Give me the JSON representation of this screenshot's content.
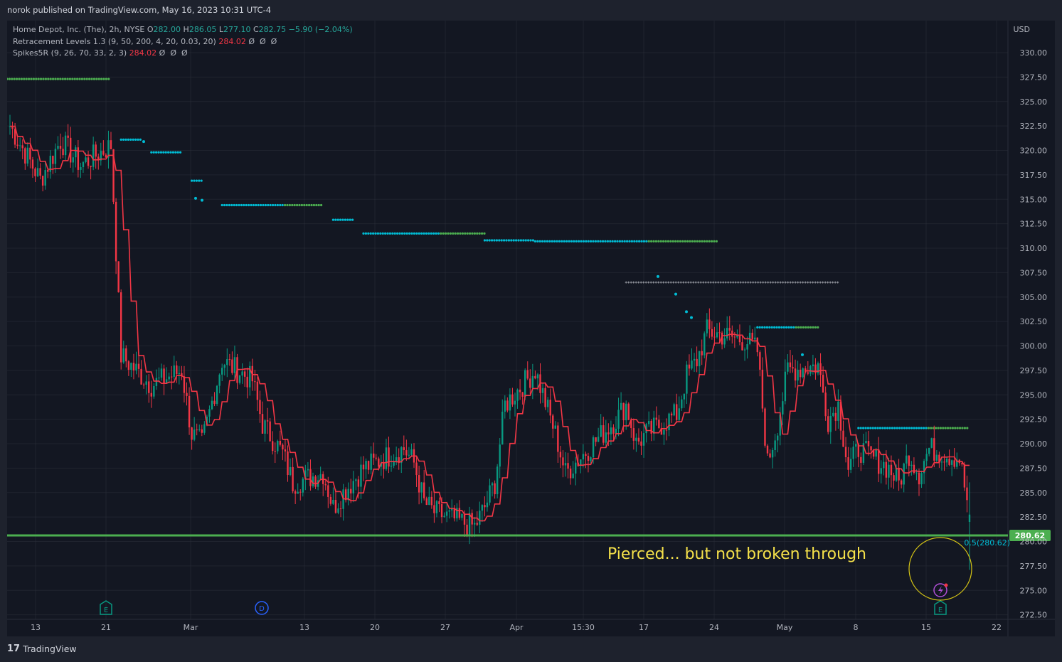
{
  "header": {
    "publish_text": "norok published on TradingView.com, May 16, 2023 10:31 UTC-4"
  },
  "legend": {
    "symbol": "Home Depot, Inc. (The), 2h, NYSE",
    "o_label": "O",
    "o_value": "282.00",
    "h_label": "H",
    "h_value": "286.05",
    "l_label": "L",
    "l_value": "277.10",
    "c_label": "C",
    "c_value": "282.75",
    "change": "−5.90 (−2.04%)",
    "ind1_name": "Retracement Levels 1.3 (9, 50, 200, 4, 20, 0.03, 20)",
    "ind1_value": "284.02",
    "ind1_extra": "Ø  Ø  Ø",
    "ind2_name": "Spikes5R (9, 26, 70, 33, 2, 3)",
    "ind2_value": "284.02",
    "ind2_extra": "Ø  Ø  Ø"
  },
  "footer": {
    "brand": "TradingView",
    "logo": "17"
  },
  "colors": {
    "background": "#131722",
    "frame": "#1e222d",
    "grid": "#2a2e39",
    "up": "#089981",
    "down": "#f23645",
    "ma_line": "#f23645",
    "support": "#4caf50",
    "cyan_dots": "#00bcd4",
    "green_dots": "#4caf50",
    "gray_crosses": "#9598a1",
    "annotation_text": "#f5e14a",
    "circle": "#d6c515",
    "retrace_label": "#00bcd4"
  },
  "chart_data": {
    "type": "candlestick",
    "title": "Home Depot, Inc. (The), 2h, NYSE",
    "currency": "USD",
    "ylim": [
      272.5,
      330.0
    ],
    "y_ticks": [
      "330.00",
      "327.50",
      "325.00",
      "322.50",
      "320.00",
      "317.50",
      "315.00",
      "312.50",
      "310.00",
      "307.50",
      "305.00",
      "302.50",
      "300.00",
      "297.50",
      "295.00",
      "292.50",
      "290.00",
      "287.50",
      "285.00",
      "282.50",
      "280.00",
      "277.50",
      "275.00",
      "272.50"
    ],
    "x_ticks": [
      "13",
      "21",
      "Mar",
      "13",
      "20",
      "27",
      "Apr",
      "15:30",
      "17",
      "24",
      "May",
      "8",
      "15",
      "22"
    ],
    "grid": true,
    "price_series_anchors": [
      {
        "t": "Feb 10",
        "v": 322.5
      },
      {
        "t": "Feb 13",
        "v": 317.0
      },
      {
        "t": "Feb 15",
        "v": 321.0
      },
      {
        "t": "Feb 17",
        "v": 318.5
      },
      {
        "t": "Feb 20",
        "v": 320.5
      },
      {
        "t": "Feb 21",
        "v": 299.0
      },
      {
        "t": "Feb 23",
        "v": 297.0
      },
      {
        "t": "Feb 24",
        "v": 296.0
      },
      {
        "t": "Feb 27",
        "v": 297.5
      },
      {
        "t": "Feb 28",
        "v": 291.0
      },
      {
        "t": "Mar 1",
        "v": 290.0
      },
      {
        "t": "Mar 3",
        "v": 298.5
      },
      {
        "t": "Mar 6",
        "v": 296.5
      },
      {
        "t": "Mar 7",
        "v": 292.0
      },
      {
        "t": "Mar 9",
        "v": 289.0
      },
      {
        "t": "Mar 10",
        "v": 286.0
      },
      {
        "t": "Mar 13",
        "v": 287.0
      },
      {
        "t": "Mar 14",
        "v": 283.5
      },
      {
        "t": "Mar 15",
        "v": 285.0
      },
      {
        "t": "Mar 17",
        "v": 287.5
      },
      {
        "t": "Mar 20",
        "v": 289.0
      },
      {
        "t": "Mar 21",
        "v": 289.5
      },
      {
        "t": "Mar 22",
        "v": 288.0
      },
      {
        "t": "Mar 23",
        "v": 284.0
      },
      {
        "t": "Mar 24",
        "v": 283.0
      },
      {
        "t": "Mar 28",
        "v": 281.5
      },
      {
        "t": "Mar 29",
        "v": 283.5
      },
      {
        "t": "Mar 30",
        "v": 286.0
      },
      {
        "t": "Mar 31",
        "v": 294.0
      },
      {
        "t": "Apr 3",
        "v": 297.5
      },
      {
        "t": "Apr 5",
        "v": 291.0
      },
      {
        "t": "Apr 6",
        "v": 287.0
      },
      {
        "t": "Apr 11",
        "v": 292.5
      },
      {
        "t": "Apr 12",
        "v": 294.0
      },
      {
        "t": "Apr 13",
        "v": 290.0
      },
      {
        "t": "Apr 14",
        "v": 291.0
      },
      {
        "t": "Apr 17",
        "v": 293.0
      },
      {
        "t": "Apr 18",
        "v": 297.0
      },
      {
        "t": "Apr 19",
        "v": 298.5
      },
      {
        "t": "Apr 20",
        "v": 301.5
      },
      {
        "t": "Apr 24",
        "v": 300.5
      },
      {
        "t": "Apr 25",
        "v": 299.5
      },
      {
        "t": "Apr 26",
        "v": 288.0
      },
      {
        "t": "Apr 27",
        "v": 292.0
      },
      {
        "t": "Apr 28",
        "v": 297.5
      },
      {
        "t": "May 1",
        "v": 298.0
      },
      {
        "t": "May 2",
        "v": 292.5
      },
      {
        "t": "May 3",
        "v": 294.0
      },
      {
        "t": "May 4",
        "v": 287.5
      },
      {
        "t": "May 5",
        "v": 289.5
      },
      {
        "t": "May 8",
        "v": 287.5
      },
      {
        "t": "May 9",
        "v": 286.0
      },
      {
        "t": "May 10",
        "v": 289.0
      },
      {
        "t": "May 11",
        "v": 287.0
      },
      {
        "t": "May 12",
        "v": 289.5
      },
      {
        "t": "May 15",
        "v": 288.5
      },
      {
        "t": "May 16",
        "v": 282.75
      }
    ],
    "last_bar": {
      "open": 282.0,
      "high": 286.05,
      "low": 277.1,
      "close": 282.75
    },
    "indicator_line": {
      "name": "Retracement Levels 1.3",
      "color": "#f23645",
      "last_value": 284.02
    },
    "dotted_levels": [
      {
        "from": "Feb 6",
        "to": "Feb 20",
        "value": 327.3,
        "style": "dots",
        "color": "green"
      },
      {
        "from": "Feb 21",
        "to": "Feb 23",
        "value": 321.1,
        "style": "dots",
        "color": "cyan"
      },
      {
        "from": "Feb 24",
        "to": "Feb 27",
        "value": 319.8,
        "style": "dots",
        "color": "cyan"
      },
      {
        "from": "Feb 28",
        "to": "Mar 1",
        "value": 316.9,
        "style": "dots",
        "color": "cyan"
      },
      {
        "from": "Mar 3",
        "to": "Mar 13",
        "value": 314.4,
        "style": "dots",
        "color": "cyan/green"
      },
      {
        "from": "Mar 14",
        "to": "Mar 16",
        "value": 312.9,
        "style": "dots",
        "color": "cyan"
      },
      {
        "from": "Mar 17",
        "to": "Mar 29",
        "value": 311.5,
        "style": "dots",
        "color": "cyan/green"
      },
      {
        "from": "Mar 29",
        "to": "Apr 3",
        "value": 310.8,
        "style": "dots",
        "color": "cyan"
      },
      {
        "from": "Apr 3",
        "to": "Apr 21",
        "value": 310.7,
        "style": "dots",
        "color": "cyan/green"
      },
      {
        "from": "Apr 12",
        "to": "May 3",
        "value": 306.5,
        "style": "crosses",
        "color": "gray"
      },
      {
        "from": "Apr 25",
        "to": "May 1",
        "value": 301.9,
        "style": "dots",
        "color": "cyan/green"
      },
      {
        "from": "May 5",
        "to": "May 16",
        "value": 291.6,
        "style": "dots",
        "color": "cyan/green"
      }
    ],
    "horizontal_line": {
      "value": 280.62,
      "label": "280.62",
      "color": "#4caf50"
    },
    "retracement_label": "0.5(280.62)",
    "annotation": "Pierced... but not broken through",
    "event_markers": [
      {
        "t": "Feb 21",
        "label": "E"
      },
      {
        "t": "Mar 7",
        "label": "D"
      },
      {
        "t": "May 16",
        "label": "E"
      }
    ]
  }
}
